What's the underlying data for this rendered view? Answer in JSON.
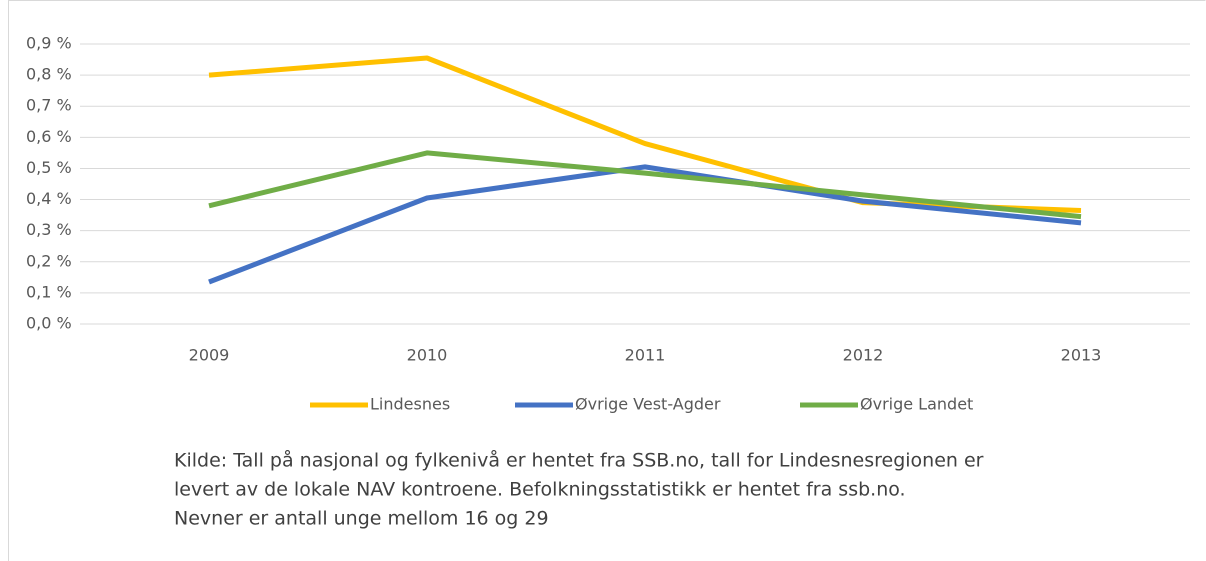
{
  "chart_data": {
    "type": "line",
    "categories": [
      "2009",
      "2010",
      "2011",
      "2012",
      "2013"
    ],
    "series": [
      {
        "name": "Lindesnes",
        "color": "#ffc000",
        "values": [
          0.8,
          0.855,
          0.58,
          0.39,
          0.365
        ]
      },
      {
        "name": "Øvrige Vest-Agder",
        "color": "#4472c4",
        "values": [
          0.135,
          0.405,
          0.505,
          0.395,
          0.325
        ]
      },
      {
        "name": "Øvrige Landet",
        "color": "#70ad47",
        "values": [
          0.38,
          0.55,
          0.485,
          0.415,
          0.345
        ]
      }
    ],
    "ylim": [
      0,
      0.9
    ],
    "yticks": [
      {
        "value": 0,
        "label": "0,0 %"
      },
      {
        "value": 0.1,
        "label": "0,1 %"
      },
      {
        "value": 0.2,
        "label": "0,2 %"
      },
      {
        "value": 0.3,
        "label": "0,3 %"
      },
      {
        "value": 0.4,
        "label": "0,4 %"
      },
      {
        "value": 0.5,
        "label": "0,5 %"
      },
      {
        "value": 0.6,
        "label": "0,6 %"
      },
      {
        "value": 0.7,
        "label": "0,7 %"
      },
      {
        "value": 0.8,
        "label": "0,8 %"
      },
      {
        "value": 0.9,
        "label": "0,9 %"
      }
    ],
    "grid": true,
    "legend": "bottom",
    "annotation": [
      "Kilde: Tall på nasjonal og fylkenivå er hentet fra SSB.no, tall for Lindesnesregionen er",
      "levert av de lokale NAV kontroene. Befolkningsstatistikk er hentet fra ssb.no.",
      "Nevner er antall unge mellom 16 og 29"
    ]
  }
}
